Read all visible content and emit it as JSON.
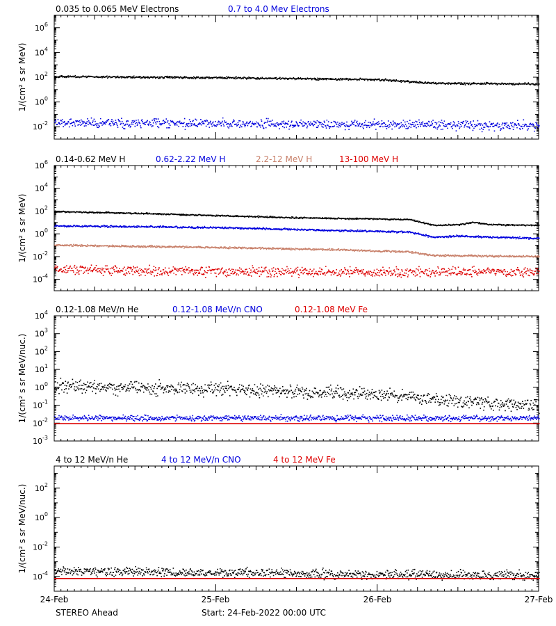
{
  "x_axis": {
    "ticks": [
      "24-Feb",
      "25-Feb",
      "26-Feb",
      "27-Feb"
    ],
    "range_days": [
      0,
      3
    ],
    "spacecraft": "STEREO Ahead",
    "start": "Start: 24-Feb-2022 00:00 UTC"
  },
  "chart_data": [
    {
      "type": "scatter",
      "ylabel": "1/(cm² s sr MeV)",
      "yscale": "log",
      "ylim_exp": [
        -3,
        7
      ],
      "yticks": [
        {
          "base": "10",
          "exp": "6",
          "value_exp": 6
        },
        {
          "base": "10",
          "exp": "4",
          "value_exp": 4
        },
        {
          "base": "10",
          "exp": "2",
          "value_exp": 2
        },
        {
          "base": "10",
          "exp": "0",
          "value_exp": 0
        },
        {
          "base": "10",
          "exp": "-2",
          "value_exp": -2
        }
      ],
      "series": [
        {
          "name": "0.035 to 0.065 MeV Electrons",
          "color": "#000000",
          "log_profile": [
            [
              0,
              2.1
            ],
            [
              1,
              2.0
            ],
            [
              2,
              1.85
            ],
            [
              2.35,
              1.55
            ],
            [
              3,
              1.5
            ]
          ],
          "scatter": 0.04
        },
        {
          "name": "0.7 to 4.0 Mev Electrons",
          "color": "#0000dd",
          "log_profile": [
            [
              0,
              -1.65
            ],
            [
              1.5,
              -1.75
            ],
            [
              3,
              -1.85
            ]
          ],
          "scatter": 0.18
        }
      ]
    },
    {
      "type": "scatter",
      "ylabel": "1/(cm² s sr MeV)",
      "yscale": "log",
      "ylim_exp": [
        -5,
        6
      ],
      "yticks": [
        {
          "base": "10",
          "exp": "6",
          "value_exp": 6
        },
        {
          "base": "10",
          "exp": "4",
          "value_exp": 4
        },
        {
          "base": "10",
          "exp": "2",
          "value_exp": 2
        },
        {
          "base": "10",
          "exp": "0",
          "value_exp": 0
        },
        {
          "base": "10",
          "exp": "-2",
          "value_exp": -2
        },
        {
          "base": "10",
          "exp": "-4",
          "value_exp": -4
        }
      ],
      "series": [
        {
          "name": "0.14-0.62 MeV H",
          "color": "#000000",
          "log_profile": [
            [
              0,
              2.0
            ],
            [
              0.5,
              1.85
            ],
            [
              1,
              1.65
            ],
            [
              1.5,
              1.45
            ],
            [
              2,
              1.35
            ],
            [
              2.2,
              1.3
            ],
            [
              2.35,
              0.8
            ],
            [
              2.5,
              0.85
            ],
            [
              2.6,
              1.05
            ],
            [
              2.7,
              0.85
            ],
            [
              3,
              0.8
            ]
          ],
          "scatter": 0.03
        },
        {
          "name": "0.62-2.22 MeV H",
          "color": "#0000dd",
          "log_profile": [
            [
              0,
              0.75
            ],
            [
              1,
              0.6
            ],
            [
              1.7,
              0.35
            ],
            [
              2.2,
              0.2
            ],
            [
              2.35,
              -0.25
            ],
            [
              2.5,
              -0.15
            ],
            [
              2.6,
              -0.2
            ],
            [
              3,
              -0.35
            ]
          ],
          "scatter": 0.04
        },
        {
          "name": "2.2-12 MeV H",
          "color": "#c8806a",
          "log_profile": [
            [
              0,
              -0.95
            ],
            [
              1,
              -1.15
            ],
            [
              1.75,
              -1.35
            ],
            [
              2.2,
              -1.55
            ],
            [
              2.35,
              -1.85
            ],
            [
              3,
              -1.95
            ]
          ],
          "scatter": 0.04
        },
        {
          "name": "13-100 MeV H",
          "color": "#dd0000",
          "log_profile": [
            [
              0,
              -3.1
            ],
            [
              1,
              -3.25
            ],
            [
              2,
              -3.3
            ],
            [
              3,
              -3.3
            ]
          ],
          "scatter": 0.2
        }
      ]
    },
    {
      "type": "scatter",
      "ylabel": "1/(cm² s sr MeV/nuc.)",
      "yscale": "log",
      "ylim_exp": [
        -3,
        4
      ],
      "yticks": [
        {
          "base": "10",
          "exp": "4",
          "value_exp": 4
        },
        {
          "base": "10",
          "exp": "3",
          "value_exp": 3
        },
        {
          "base": "10",
          "exp": "2",
          "value_exp": 2
        },
        {
          "base": "10",
          "exp": "1",
          "value_exp": 1
        },
        {
          "base": "10",
          "exp": "0",
          "value_exp": 0
        },
        {
          "base": "10",
          "exp": "-1",
          "value_exp": -1
        },
        {
          "base": "10",
          "exp": "-2",
          "value_exp": -2
        },
        {
          "base": "10",
          "exp": "-3",
          "value_exp": -3
        }
      ],
      "series": [
        {
          "name": "0.12-1.08 MeV/n He",
          "color": "#000000",
          "log_profile": [
            [
              0,
              0.1
            ],
            [
              1,
              -0.1
            ],
            [
              2,
              -0.35
            ],
            [
              2.3,
              -0.6
            ],
            [
              3,
              -1.05
            ]
          ],
          "scatter": 0.18
        },
        {
          "name": "0.12-1.08 MeV/n CNO",
          "color": "#0000dd",
          "log_profile": [
            [
              0,
              -1.7
            ],
            [
              3,
              -1.7
            ]
          ],
          "scatter": 0.08
        },
        {
          "name": "0.12-1.08 MeV Fe",
          "color": "#dd0000",
          "log_profile": [
            [
              0,
              -2.0
            ],
            [
              3,
              -2.0
            ]
          ],
          "scatter": 0.0
        }
      ]
    },
    {
      "type": "scatter",
      "ylabel": "1/(cm² s sr MeV/nuc.)",
      "yscale": "log",
      "ylim_exp": [
        -5,
        3.5
      ],
      "yticks": [
        {
          "base": "10",
          "exp": "2",
          "value_exp": 2
        },
        {
          "base": "10",
          "exp": "0",
          "value_exp": 0
        },
        {
          "base": "10",
          "exp": "-2",
          "value_exp": -2
        },
        {
          "base": "10",
          "exp": "-4",
          "value_exp": -4
        }
      ],
      "series": [
        {
          "name": "4 to 12 MeV/n He",
          "color": "#000000",
          "log_profile": [
            [
              0,
              -3.6
            ],
            [
              1,
              -3.7
            ],
            [
              2,
              -3.85
            ],
            [
              3,
              -3.9
            ]
          ],
          "scatter": 0.15
        },
        {
          "name": "4 to 12 MeV/n CNO",
          "color": "#0000dd",
          "log_profile": [
            [
              0,
              -4.1
            ],
            [
              3,
              -4.1
            ]
          ],
          "scatter": 0.0
        },
        {
          "name": "4 to 12 MeV Fe",
          "color": "#dd0000",
          "log_profile": [
            [
              0,
              -4.1
            ],
            [
              3,
              -4.1
            ]
          ],
          "scatter": 0.0
        }
      ]
    }
  ]
}
